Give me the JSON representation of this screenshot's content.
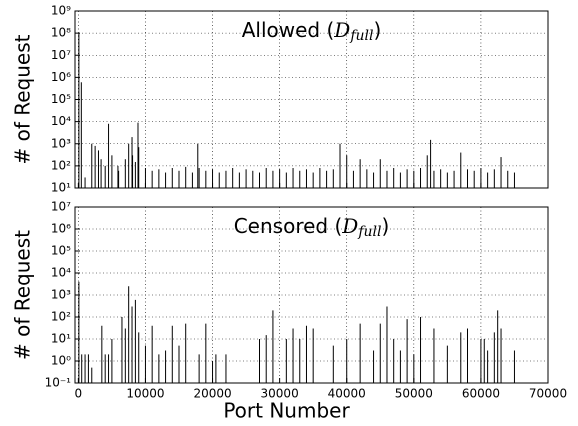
{
  "chart_data": [
    {
      "type": "bar",
      "title": [
        "Allowed (",
        "D",
        "full",
        ")"
      ],
      "ylabel": "# of Request",
      "log": true,
      "grid": true,
      "color": "#000000",
      "show_xtick_labels": false,
      "xlim": [
        -500,
        70000
      ],
      "xticks": [
        0,
        10000,
        20000,
        30000,
        40000,
        50000,
        60000,
        70000
      ],
      "ylim": [
        10,
        1000000000
      ],
      "yticks": [
        {
          "value": 10,
          "label": "10¹"
        },
        {
          "value": 100,
          "label": "10²"
        },
        {
          "value": 1000,
          "label": "10³"
        },
        {
          "value": 10000,
          "label": "10⁴"
        },
        {
          "value": 100000,
          "label": "10⁵"
        },
        {
          "value": 1000000,
          "label": "10⁶"
        },
        {
          "value": 10000000,
          "label": "10⁷"
        },
        {
          "value": 100000000,
          "label": "10⁸"
        },
        {
          "value": 1000000000,
          "label": "10⁹"
        }
      ],
      "x": [
        80,
        443,
        1000,
        2000,
        2500,
        3000,
        3389,
        4000,
        4500,
        5000,
        5900,
        6000,
        7000,
        7500,
        8000,
        8080,
        8500,
        8888,
        9000,
        10000,
        11000,
        12000,
        13000,
        14000,
        15000,
        16000,
        17000,
        17800,
        18000,
        19000,
        20000,
        21000,
        22000,
        23000,
        24000,
        25000,
        26000,
        27000,
        28000,
        29000,
        30000,
        31000,
        32000,
        33000,
        34000,
        35000,
        36000,
        37000,
        38000,
        39000,
        40000,
        41000,
        42000,
        43000,
        44000,
        45000,
        46000,
        47000,
        48000,
        49000,
        50000,
        51000,
        52000,
        52500,
        53000,
        54000,
        55000,
        56000,
        57000,
        58000,
        59000,
        60000,
        61000,
        62000,
        63000,
        64000,
        65000
      ],
      "values": [
        100000000,
        600000,
        30,
        1000,
        800,
        500,
        200,
        100,
        8000,
        300,
        100,
        60,
        200,
        1000,
        2000,
        300,
        150,
        9000,
        700,
        80,
        60,
        70,
        50,
        80,
        60,
        90,
        50,
        1000,
        80,
        60,
        70,
        50,
        60,
        80,
        50,
        70,
        60,
        50,
        80,
        60,
        70,
        50,
        80,
        60,
        70,
        50,
        80,
        60,
        70,
        1000,
        300,
        60,
        200,
        70,
        50,
        200,
        60,
        80,
        50,
        70,
        60,
        80,
        300,
        1500,
        60,
        70,
        50,
        60,
        400,
        70,
        60,
        80,
        50,
        70,
        250,
        60,
        50
      ]
    },
    {
      "type": "bar",
      "title": [
        "Censored (",
        "D",
        "full",
        ")"
      ],
      "ylabel": "# of Request",
      "xlabel": "Port Number",
      "log": true,
      "grid": true,
      "color": "#000000",
      "show_xtick_labels": true,
      "xlim": [
        -500,
        70000
      ],
      "xticks": [
        0,
        10000,
        20000,
        30000,
        40000,
        50000,
        60000,
        70000
      ],
      "ylim": [
        0.1,
        10000000
      ],
      "yticks": [
        {
          "value": 0.1,
          "label": "10⁻¹"
        },
        {
          "value": 1,
          "label": "10⁰"
        },
        {
          "value": 10,
          "label": "10¹"
        },
        {
          "value": 100,
          "label": "10²"
        },
        {
          "value": 1000,
          "label": "10³"
        },
        {
          "value": 10000,
          "label": "10⁴"
        },
        {
          "value": 100000,
          "label": "10⁵"
        },
        {
          "value": 1000000,
          "label": "10⁶"
        },
        {
          "value": 10000000,
          "label": "10⁷"
        }
      ],
      "x": [
        80,
        500,
        1000,
        1500,
        2000,
        3500,
        4000,
        4500,
        5000,
        6500,
        7000,
        7500,
        8000,
        8500,
        9000,
        10000,
        11000,
        12000,
        13000,
        14000,
        15000,
        16000,
        18000,
        19000,
        20000,
        20500,
        22000,
        27000,
        28000,
        29000,
        31000,
        32000,
        33000,
        34000,
        35000,
        38000,
        40000,
        42000,
        44000,
        45000,
        46000,
        47000,
        48000,
        49000,
        50000,
        51000,
        53000,
        55000,
        57000,
        58000,
        60000,
        60500,
        61000,
        62000,
        62500,
        63000,
        65000
      ],
      "values": [
        4000,
        2,
        2,
        2,
        0.5,
        40,
        2,
        2,
        10,
        100,
        30,
        2500,
        300,
        600,
        20,
        5,
        40,
        2,
        3,
        40,
        5,
        50,
        2,
        50,
        1,
        2,
        2,
        10,
        15,
        200,
        10,
        30,
        10,
        40,
        30,
        5,
        10,
        50,
        3,
        50,
        300,
        10,
        3,
        80,
        2,
        100,
        30,
        5,
        20,
        30,
        10,
        10,
        3,
        20,
        200,
        30,
        3
      ]
    }
  ]
}
